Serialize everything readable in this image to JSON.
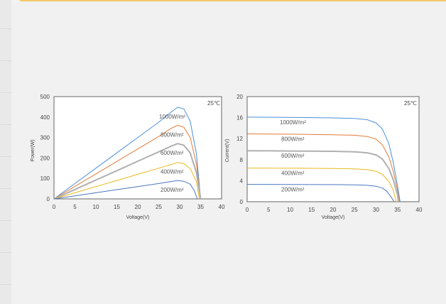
{
  "chart_data": [
    {
      "type": "line",
      "xlabel": "Voltage(V)",
      "ylabel": "Power(W)",
      "xlim": [
        0,
        40
      ],
      "ylim": [
        0,
        500
      ],
      "xticks": [
        "0",
        "5",
        "10",
        "15",
        "20",
        "25",
        "30",
        "35",
        "40"
      ],
      "yticks": [
        "0",
        "100",
        "200",
        "300",
        "400",
        "500"
      ],
      "annotation": "25℃",
      "series": [
        {
          "name": "1000W/m²",
          "color": "#4a90d9",
          "x": [
            0,
            5,
            10,
            15,
            20,
            25,
            28,
            29.5,
            31,
            32.5,
            34,
            35
          ],
          "y": [
            0,
            75,
            150,
            225,
            300,
            375,
            425,
            448,
            440,
            380,
            220,
            0
          ]
        },
        {
          "name": "800W/m²",
          "color": "#e07b39",
          "x": [
            0,
            5,
            10,
            15,
            20,
            25,
            28,
            29.5,
            31,
            32.5,
            34,
            35
          ],
          "y": [
            0,
            61,
            122,
            183,
            244,
            305,
            345,
            360,
            350,
            300,
            170,
            0
          ]
        },
        {
          "name": "600W/m²",
          "color": "#b0b0b0",
          "x": [
            0,
            5,
            10,
            15,
            20,
            25,
            28,
            29.5,
            31,
            32.5,
            34,
            35
          ],
          "y": [
            0,
            46,
            92,
            138,
            184,
            230,
            258,
            270,
            262,
            225,
            128,
            0
          ]
        },
        {
          "name": "400W/m²",
          "color": "#e8b820",
          "x": [
            0,
            5,
            10,
            15,
            20,
            25,
            28,
            29.5,
            31,
            32.5,
            34,
            34.7
          ],
          "y": [
            0,
            30,
            60,
            90,
            120,
            150,
            168,
            178,
            172,
            148,
            85,
            0
          ]
        },
        {
          "name": "200W/m²",
          "color": "#4a78c0",
          "x": [
            0,
            5,
            10,
            15,
            20,
            25,
            28,
            29.5,
            31,
            32.5,
            33.5,
            34.2
          ],
          "y": [
            0,
            15,
            30,
            45,
            60,
            75,
            85,
            90,
            86,
            72,
            40,
            0
          ]
        }
      ]
    },
    {
      "type": "line",
      "xlabel": "Voltage(V)",
      "ylabel": "Current(V)",
      "xlim": [
        0,
        40
      ],
      "ylim": [
        0,
        20
      ],
      "xticks": [
        "0",
        "5",
        "10",
        "15",
        "20",
        "25",
        "30",
        "35",
        "40"
      ],
      "yticks": [
        "0",
        "4",
        "8",
        "12",
        "16",
        "20"
      ],
      "annotation": "25℃",
      "series": [
        {
          "name": "1000W/m²",
          "color": "#4a90d9",
          "x": [
            0,
            10,
            20,
            25,
            28,
            30,
            31.5,
            33,
            34,
            35,
            35.6
          ],
          "y": [
            16.1,
            16.05,
            15.95,
            15.85,
            15.6,
            15.0,
            13.8,
            11.0,
            7.5,
            3.0,
            0
          ]
        },
        {
          "name": "800W/m²",
          "color": "#e07b39",
          "x": [
            0,
            10,
            20,
            25,
            28,
            30,
            31.5,
            33,
            34,
            35,
            35.4
          ],
          "y": [
            12.9,
            12.85,
            12.75,
            12.65,
            12.4,
            11.9,
            10.8,
            8.5,
            5.8,
            2.2,
            0
          ]
        },
        {
          "name": "600W/m²",
          "color": "#b0b0b0",
          "x": [
            0,
            10,
            20,
            25,
            28,
            30,
            31.5,
            33,
            34,
            35,
            35.2
          ],
          "y": [
            9.7,
            9.65,
            9.6,
            9.5,
            9.3,
            8.9,
            8.1,
            6.3,
            4.2,
            1.3,
            0
          ]
        },
        {
          "name": "400W/m²",
          "color": "#e8b820",
          "x": [
            0,
            10,
            20,
            25,
            28,
            30,
            31.5,
            33,
            34,
            34.7
          ],
          "y": [
            6.4,
            6.38,
            6.33,
            6.25,
            6.1,
            5.8,
            5.2,
            3.8,
            2.2,
            0
          ]
        },
        {
          "name": "200W/m²",
          "color": "#4a78c0",
          "x": [
            0,
            10,
            20,
            25,
            28,
            30,
            31.5,
            32.5,
            33.5,
            34.2
          ],
          "y": [
            3.3,
            3.29,
            3.26,
            3.22,
            3.12,
            2.95,
            2.6,
            2.0,
            0.9,
            0
          ]
        }
      ]
    }
  ]
}
